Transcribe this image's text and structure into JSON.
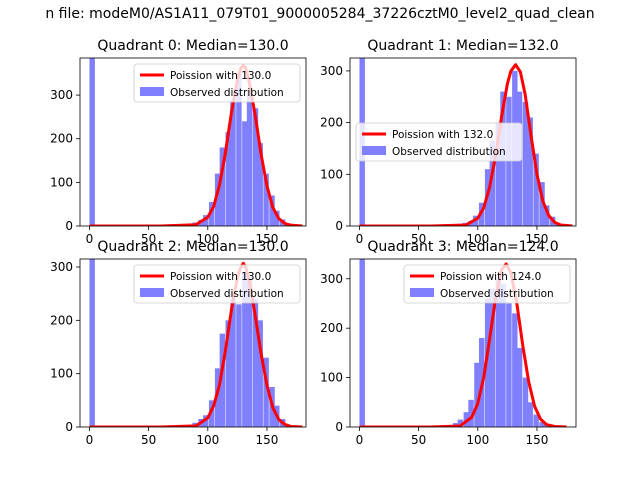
{
  "suptitle": "n file: modeM0/AS1A11_079T01_9000005284_37226cztM0_level2_quad_clean",
  "colors": {
    "poisson": "#ff0000",
    "observed": "#8080ff",
    "axes": "#000000"
  },
  "chart_data": [
    {
      "type": "bar",
      "title": "Quadrant 0: Median=130.0",
      "median": 130.0,
      "xlim": [
        -8,
        183
      ],
      "ylim": [
        0,
        385
      ],
      "xticks": [
        0,
        50,
        100,
        150
      ],
      "yticks": [
        0,
        100,
        200,
        300
      ],
      "legend": {
        "position": "top-right",
        "entries": [
          "Poission with 130.0",
          "Observed distribution"
        ]
      },
      "series": [
        {
          "name": "Observed distribution",
          "type": "bar",
          "bin_width": 4.6,
          "bins_left": [
            0,
            78,
            83,
            87,
            92,
            96,
            101,
            106,
            110,
            115,
            119,
            124,
            129,
            133,
            138,
            142,
            147,
            152,
            156,
            161,
            165,
            170
          ],
          "counts": [
            400,
            2,
            3,
            8,
            14,
            25,
            55,
            120,
            180,
            215,
            290,
            350,
            240,
            310,
            270,
            190,
            120,
            70,
            35,
            15,
            6,
            2
          ]
        },
        {
          "name": "Poission with 130.0",
          "type": "line",
          "x": [
            0,
            60,
            90,
            100,
            105,
            110,
            115,
            120,
            125,
            128,
            130,
            132,
            135,
            140,
            145,
            150,
            155,
            160,
            165,
            170,
            180
          ],
          "y": [
            0,
            0,
            3,
            20,
            45,
            95,
            170,
            260,
            335,
            362,
            368,
            362,
            330,
            255,
            165,
            92,
            42,
            17,
            6,
            2,
            0
          ]
        }
      ]
    },
    {
      "type": "bar",
      "title": "Quadrant 1: Median=132.0",
      "median": 132.0,
      "xlim": [
        -8,
        183
      ],
      "ylim": [
        0,
        325
      ],
      "xticks": [
        0,
        50,
        100,
        150
      ],
      "yticks": [
        0,
        100,
        200,
        300
      ],
      "legend": {
        "position": "center-left",
        "entries": [
          "Poission with 132.0",
          "Observed distribution"
        ]
      },
      "series": [
        {
          "name": "Observed distribution",
          "type": "bar",
          "bin_width": 4.6,
          "bins_left": [
            0,
            78,
            83,
            87,
            92,
            96,
            101,
            106,
            110,
            115,
            119,
            124,
            129,
            133,
            138,
            142,
            147,
            152,
            156,
            161,
            165,
            170
          ],
          "counts": [
            400,
            2,
            3,
            6,
            10,
            20,
            45,
            110,
            165,
            200,
            260,
            250,
            300,
            260,
            240,
            210,
            140,
            85,
            40,
            18,
            6,
            2
          ]
        },
        {
          "name": "Poission with 132.0",
          "type": "line",
          "x": [
            0,
            60,
            90,
            100,
            105,
            110,
            115,
            120,
            125,
            128,
            132,
            136,
            140,
            145,
            150,
            155,
            160,
            165,
            170,
            180
          ],
          "y": [
            0,
            0,
            2,
            15,
            35,
            75,
            135,
            210,
            275,
            300,
            312,
            298,
            255,
            175,
            100,
            48,
            20,
            7,
            2,
            0
          ]
        }
      ]
    },
    {
      "type": "bar",
      "title": "Quadrant 2: Median=130.0",
      "median": 130.0,
      "xlim": [
        -8,
        183
      ],
      "ylim": [
        0,
        315
      ],
      "xticks": [
        0,
        50,
        100,
        150
      ],
      "yticks": [
        0,
        100,
        200,
        300
      ],
      "legend": {
        "position": "top-right",
        "entries": [
          "Poission with 130.0",
          "Observed distribution"
        ]
      },
      "series": [
        {
          "name": "Observed distribution",
          "type": "bar",
          "bin_width": 4.6,
          "bins_left": [
            0,
            78,
            83,
            87,
            92,
            96,
            101,
            106,
            110,
            115,
            119,
            124,
            129,
            133,
            138,
            142,
            147,
            152,
            156,
            161,
            165,
            170
          ],
          "counts": [
            400,
            2,
            4,
            8,
            15,
            22,
            50,
            110,
            175,
            200,
            240,
            230,
            290,
            280,
            240,
            200,
            130,
            75,
            40,
            15,
            5,
            2
          ]
        },
        {
          "name": "Poission with 130.0",
          "type": "line",
          "x": [
            0,
            60,
            90,
            100,
            105,
            110,
            115,
            120,
            125,
            128,
            130,
            132,
            135,
            140,
            145,
            150,
            155,
            160,
            165,
            170,
            180
          ],
          "y": [
            0,
            0,
            2,
            17,
            40,
            80,
            145,
            220,
            280,
            300,
            307,
            300,
            275,
            210,
            138,
            78,
            36,
            14,
            5,
            1,
            0
          ]
        }
      ]
    },
    {
      "type": "bar",
      "title": "Quadrant 3: Median=124.0",
      "median": 124.0,
      "xlim": [
        -8,
        183
      ],
      "ylim": [
        0,
        340
      ],
      "xticks": [
        0,
        50,
        100,
        150
      ],
      "yticks": [
        0,
        100,
        200,
        300
      ],
      "legend": {
        "position": "top-right",
        "entries": [
          "Poission with 124.0",
          "Observed distribution"
        ]
      },
      "series": [
        {
          "name": "Observed distribution",
          "type": "bar",
          "bin_width": 4.6,
          "bins_left": [
            0,
            70,
            74,
            79,
            83,
            88,
            92,
            97,
            101,
            106,
            110,
            115,
            119,
            124,
            129,
            133,
            138,
            142,
            147,
            152,
            156,
            161
          ],
          "counts": [
            400,
            2,
            4,
            8,
            15,
            30,
            55,
            130,
            180,
            260,
            280,
            300,
            290,
            250,
            230,
            160,
            100,
            50,
            25,
            10,
            4,
            1
          ]
        },
        {
          "name": "Poission with 124.0",
          "type": "line",
          "x": [
            0,
            60,
            85,
            95,
            100,
            105,
            110,
            115,
            120,
            124,
            128,
            133,
            138,
            143,
            148,
            153,
            158,
            165,
            175
          ],
          "y": [
            0,
            0,
            2,
            20,
            48,
            100,
            178,
            260,
            318,
            330,
            312,
            250,
            165,
            92,
            42,
            16,
            5,
            1,
            0
          ]
        }
      ]
    }
  ]
}
